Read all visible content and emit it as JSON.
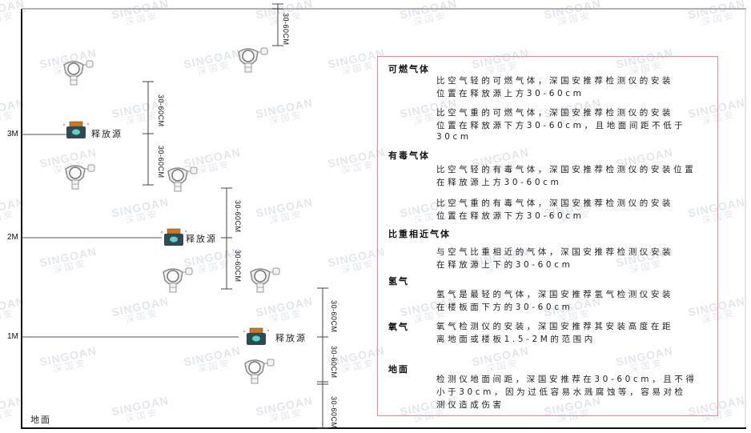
{
  "watermark": {
    "brand": "SINGOAN",
    "cn": "深国安"
  },
  "levels": [
    {
      "label": "3M"
    },
    {
      "label": "2M"
    },
    {
      "label": "1M"
    }
  ],
  "ground_label": "地面",
  "release_source_label": "释放源",
  "dimension_label": "30-60CM",
  "colors": {
    "frame": "#222222",
    "box_border": "#f08a8a",
    "source_body": "#2f4a55",
    "source_cap": "#c9782a",
    "detector": "#8a8a8a"
  },
  "legend": {
    "sections": [
      {
        "title": "可燃气体",
        "paragraphs": [
          [
            "比空气轻的可燃气体，深国安推荐检测仪的安装",
            "位置在释放源上方30-60cm"
          ],
          [
            "比空气重的可燃气体，深国安推荐检测仪的安装",
            "位置在释放源下方30-60cm，且地面间距不低于",
            "30cm"
          ]
        ]
      },
      {
        "title": "有毒气体",
        "paragraphs": [
          [
            "比空气轻的有毒气体，深国安推荐检测仪的安装位置",
            "在释放源上方30-60cm"
          ],
          [
            "比空气重的有毒气体，深国安推荐检测仪的安装",
            "位置在释放源下方30-60cm"
          ]
        ]
      },
      {
        "title": "比重相近气体",
        "paragraphs": [
          [
            "与空气比重相近的气体，深国安推荐检测仪安装",
            "在释放源上下的30-60cm"
          ]
        ]
      },
      {
        "title": "氢气",
        "paragraphs": [
          [
            "氢气是最轻的气体，深国安推荐氢气检测仪安装",
            "在楼板面下方的30-60cm"
          ]
        ]
      },
      {
        "title": "氧气",
        "paragraphs": [
          [
            "氧气检测仪的安装，深国安推荐其安装高度在距",
            "离地面或楼板1.5-2M的范围内"
          ]
        ]
      },
      {
        "title": "地面",
        "paragraphs": [
          [
            "检测仪地面间距，深国安推荐在30-60cm，且不得",
            "小于30cm，因为过低容易水溅腐蚀等，容易对检",
            "测仪造成伤害"
          ]
        ]
      }
    ]
  }
}
